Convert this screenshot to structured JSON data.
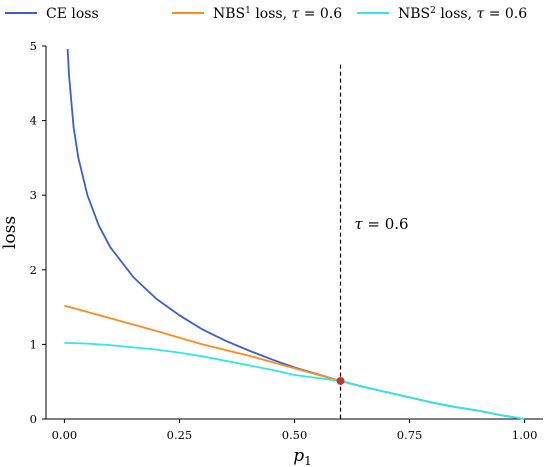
{
  "chart_data": {
    "type": "line",
    "xlabel": "p",
    "xlabel_sub": "1",
    "ylabel": "loss",
    "xlim": [
      -0.04,
      1.04
    ],
    "ylim": [
      0,
      5
    ],
    "x_ticks": [
      0.0,
      0.25,
      0.5,
      0.75,
      1.0
    ],
    "x_tick_labels": [
      "0.00",
      "0.25",
      "0.50",
      "0.75",
      "1.00"
    ],
    "y_ticks": [
      0,
      1,
      2,
      3,
      4,
      5
    ],
    "y_tick_labels": [
      "0",
      "1",
      "2",
      "3",
      "4",
      "5"
    ],
    "grid": false,
    "legend_position": "top",
    "series": [
      {
        "name": "CE loss",
        "color": "#3a5fcd",
        "x": [
          0.007,
          0.01,
          0.02,
          0.03,
          0.05,
          0.075,
          0.1,
          0.15,
          0.2,
          0.25,
          0.3,
          0.35,
          0.4,
          0.45,
          0.5,
          0.55,
          0.6,
          0.65,
          0.7,
          0.75,
          0.8,
          0.85,
          0.9,
          0.95,
          1.0
        ],
        "y": [
          4.96,
          4.61,
          3.91,
          3.51,
          3.0,
          2.59,
          2.3,
          1.9,
          1.61,
          1.39,
          1.2,
          1.05,
          0.92,
          0.8,
          0.69,
          0.6,
          0.51,
          0.43,
          0.36,
          0.29,
          0.22,
          0.16,
          0.11,
          0.05,
          0.0
        ]
      },
      {
        "name": "NBS¹ loss, τ = 0.6",
        "name_parts": [
          "NBS",
          "1",
          " loss, ",
          "τ",
          " = 0.6"
        ],
        "color": "#ff8c1a",
        "x": [
          0.0,
          0.1,
          0.2,
          0.3,
          0.4,
          0.5,
          0.6
        ],
        "y": [
          1.52,
          1.35,
          1.18,
          1.0,
          0.85,
          0.68,
          0.51
        ]
      },
      {
        "name": "NBS² loss, τ = 0.6",
        "name_parts": [
          "NBS",
          "2",
          " loss, ",
          "τ",
          " = 0.6"
        ],
        "color": "#33e6e6",
        "x": [
          0.0,
          0.05,
          0.1,
          0.15,
          0.2,
          0.25,
          0.3,
          0.35,
          0.4,
          0.45,
          0.5,
          0.55,
          0.6,
          0.65,
          0.7,
          0.75,
          0.8,
          0.85,
          0.9,
          0.95,
          1.0
        ],
        "y": [
          1.02,
          1.01,
          0.99,
          0.96,
          0.93,
          0.89,
          0.84,
          0.78,
          0.72,
          0.66,
          0.59,
          0.55,
          0.51,
          0.43,
          0.36,
          0.29,
          0.22,
          0.16,
          0.11,
          0.05,
          0.0
        ]
      }
    ],
    "vline": {
      "x": 0.6,
      "style": "dashed",
      "color": "#000000",
      "y_top": 4.75
    },
    "marker": {
      "x": 0.6,
      "y": 0.51,
      "color": "#c0392b"
    },
    "annotation": {
      "text_parts": [
        "τ",
        " = 0.6"
      ],
      "x": 0.63,
      "y": 2.55
    }
  }
}
